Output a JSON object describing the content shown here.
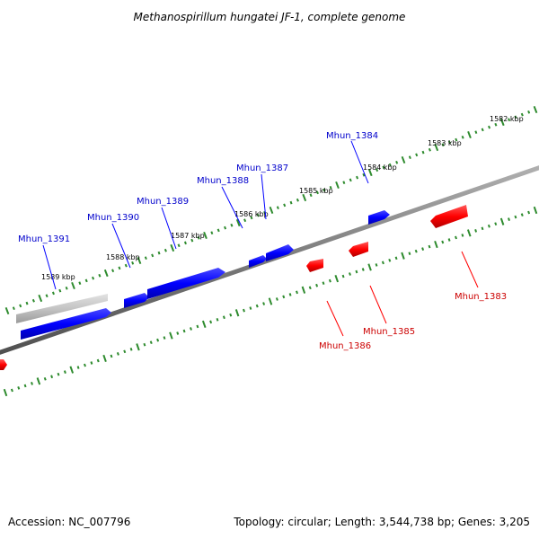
{
  "title": "Methanospirillum hungatei JF-1, complete genome",
  "accession": "Accession: NC_007796",
  "summary": "Topology: circular; Length: 3,544,738 bp; Genes: 3,205",
  "colors": {
    "forward": "#0000ff",
    "reverse": "#ff0000",
    "pseudo": "#bbbbbb",
    "ticks": "#2e8b2e",
    "backbone": "#808080"
  },
  "kbp_labels": [
    "1582 kbp",
    "1583 kbp",
    "1584 kbp",
    "1585 kbp",
    "1586 kbp",
    "1587 kbp",
    "1588 kbp",
    "1589 kbp"
  ],
  "genes": [
    {
      "name": "Mhun_1383",
      "strand": "reverse"
    },
    {
      "name": "Mhun_1384",
      "strand": "forward"
    },
    {
      "name": "Mhun_1385",
      "strand": "reverse"
    },
    {
      "name": "Mhun_1386",
      "strand": "reverse"
    },
    {
      "name": "Mhun_1387",
      "strand": "forward"
    },
    {
      "name": "Mhun_1388",
      "strand": "forward"
    },
    {
      "name": "Mhun_1389",
      "strand": "forward"
    },
    {
      "name": "Mhun_1390",
      "strand": "forward"
    },
    {
      "name": "Mhun_1391",
      "strand": "forward"
    }
  ]
}
